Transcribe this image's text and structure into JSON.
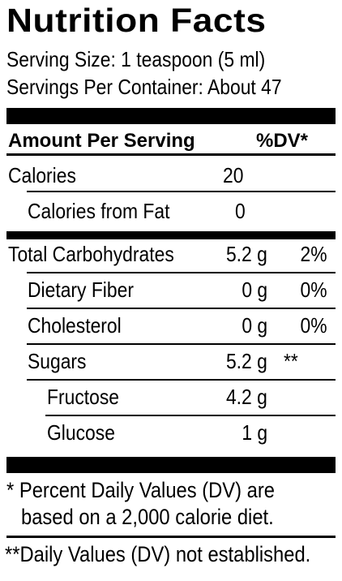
{
  "title": "Nutrition Facts",
  "serving_size": "Serving Size: 1 teaspoon (5 ml)",
  "servings_per_container": "Servings Per Container: About 47",
  "header": {
    "amount": "Amount Per Serving",
    "dv": "%DV*"
  },
  "calories": {
    "label": "Calories",
    "value": "20"
  },
  "calories_from_fat": {
    "label": "Calories from Fat",
    "value": "0"
  },
  "nutrients": [
    {
      "label": "Total Carbohydrates",
      "amount": "5.2 g",
      "dv": "2%"
    },
    {
      "label": "Dietary Fiber",
      "amount": "0 g",
      "dv": "0%"
    },
    {
      "label": "Cholesterol",
      "amount": "0 g",
      "dv": "0%"
    },
    {
      "label": "Sugars",
      "amount": "5.2 g",
      "dv": "**"
    },
    {
      "label": "Fructose",
      "amount": "4.2 g",
      "dv": ""
    },
    {
      "label": "Glucose",
      "amount": "1 g",
      "dv": ""
    }
  ],
  "footnote_1_line_1": "* Percent Daily Values (DV) are",
  "footnote_1_line_2": "based on a 2,000 calorie diet.",
  "footnote_2": "**Daily Values (DV) not established."
}
